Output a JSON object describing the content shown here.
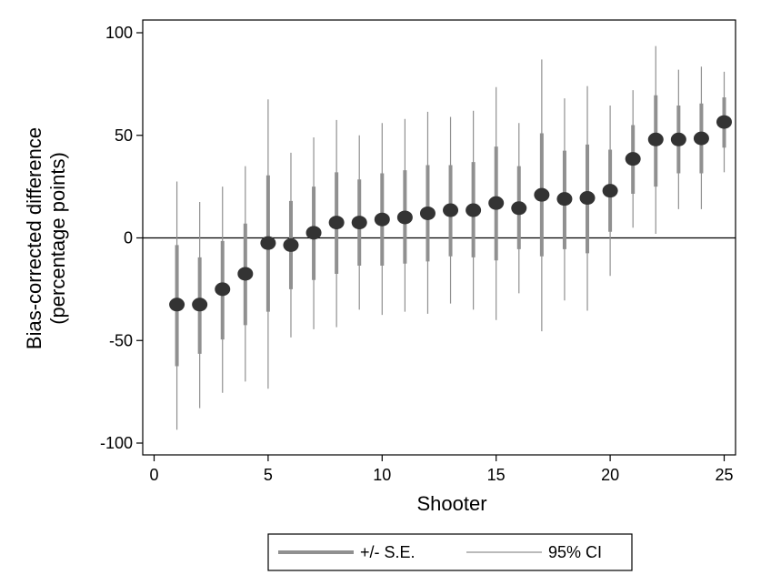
{
  "chart_data": {
    "type": "scatter",
    "xlabel": "Shooter",
    "ylabel_line1": "Bias-corrected difference",
    "ylabel_line2": "(percentage points)",
    "xlim": [
      0,
      25
    ],
    "ylim": [
      -100,
      100
    ],
    "xticks": [
      0,
      5,
      10,
      15,
      20,
      25
    ],
    "xtick_labels": [
      "0",
      "5",
      "10",
      "15",
      "20",
      "25"
    ],
    "yticks": [
      100,
      50,
      0,
      -50,
      -100
    ],
    "ytick_labels": [
      "100",
      "50",
      "0",
      "-50",
      "-100"
    ],
    "reference_line_y": 0,
    "grid": false,
    "legend_position": "bottom",
    "legend": [
      {
        "label": "+/- S.E.",
        "style": "thick-bar"
      },
      {
        "label": "95% CI",
        "style": "thin-line"
      }
    ],
    "colors": {
      "point": "#333333",
      "se_bar": "#909090",
      "ci_line": "#909090",
      "axis": "#000000"
    },
    "points": [
      {
        "x": 1,
        "y": -32.5,
        "se_low": -62.5,
        "se_high": -3.5,
        "ci_low": -93.5,
        "ci_high": 27.5
      },
      {
        "x": 2,
        "y": -32.5,
        "se_low": -56.5,
        "se_high": -9.5,
        "ci_low": -83,
        "ci_high": 17.5
      },
      {
        "x": 3,
        "y": -25,
        "se_low": -49.5,
        "se_high": -1.5,
        "ci_low": -75.5,
        "ci_high": 25
      },
      {
        "x": 4,
        "y": -17.5,
        "se_low": -42.5,
        "se_high": 7,
        "ci_low": -70,
        "ci_high": 35
      },
      {
        "x": 5,
        "y": -2.5,
        "se_low": -36,
        "se_high": 30.5,
        "ci_low": -73.5,
        "ci_high": 67.5
      },
      {
        "x": 6,
        "y": -3.5,
        "se_low": -25,
        "se_high": 18,
        "ci_low": -48.5,
        "ci_high": 41.5
      },
      {
        "x": 7,
        "y": 2.5,
        "se_low": -20.5,
        "se_high": 25,
        "ci_low": -44.5,
        "ci_high": 49
      },
      {
        "x": 8,
        "y": 7.5,
        "se_low": -17.5,
        "se_high": 32,
        "ci_low": -43.5,
        "ci_high": 57.5
      },
      {
        "x": 9,
        "y": 7.5,
        "se_low": -13.5,
        "se_high": 28.5,
        "ci_low": -35,
        "ci_high": 50
      },
      {
        "x": 10,
        "y": 9,
        "se_low": -13.5,
        "se_high": 31.5,
        "ci_low": -37.5,
        "ci_high": 56
      },
      {
        "x": 11,
        "y": 10,
        "se_low": -12.5,
        "se_high": 33,
        "ci_low": -36,
        "ci_high": 58
      },
      {
        "x": 12,
        "y": 12,
        "se_low": -11.5,
        "se_high": 35.5,
        "ci_low": -37,
        "ci_high": 61.5
      },
      {
        "x": 13,
        "y": 13.5,
        "se_low": -9,
        "se_high": 35.5,
        "ci_low": -32,
        "ci_high": 59
      },
      {
        "x": 14,
        "y": 13.5,
        "se_low": -9.5,
        "se_high": 37,
        "ci_low": -35,
        "ci_high": 62
      },
      {
        "x": 15,
        "y": 17,
        "se_low": -11,
        "se_high": 44.5,
        "ci_low": -40,
        "ci_high": 73.5
      },
      {
        "x": 16,
        "y": 14.5,
        "se_low": -5.5,
        "se_high": 35,
        "ci_low": -27,
        "ci_high": 56
      },
      {
        "x": 17,
        "y": 21,
        "se_low": -9,
        "se_high": 51,
        "ci_low": -45.5,
        "ci_high": 87
      },
      {
        "x": 18,
        "y": 19,
        "se_low": -5.5,
        "se_high": 42.5,
        "ci_low": -30.5,
        "ci_high": 68
      },
      {
        "x": 19,
        "y": 19.5,
        "se_low": -7.5,
        "se_high": 45.5,
        "ci_low": -35.5,
        "ci_high": 74
      },
      {
        "x": 20,
        "y": 23,
        "se_low": 3,
        "se_high": 43,
        "ci_low": -18.5,
        "ci_high": 64.5
      },
      {
        "x": 21,
        "y": 38.5,
        "se_low": 21.5,
        "se_high": 55,
        "ci_low": 5,
        "ci_high": 72
      },
      {
        "x": 22,
        "y": 48,
        "se_low": 25,
        "se_high": 69.5,
        "ci_low": 2,
        "ci_high": 93.5
      },
      {
        "x": 23,
        "y": 48,
        "se_low": 31.5,
        "se_high": 64.5,
        "ci_low": 14,
        "ci_high": 82
      },
      {
        "x": 24,
        "y": 48.5,
        "se_low": 31.5,
        "se_high": 65.5,
        "ci_low": 14,
        "ci_high": 83.5
      },
      {
        "x": 25,
        "y": 56.5,
        "se_low": 44,
        "se_high": 68.5,
        "ci_low": 32,
        "ci_high": 81
      }
    ]
  }
}
